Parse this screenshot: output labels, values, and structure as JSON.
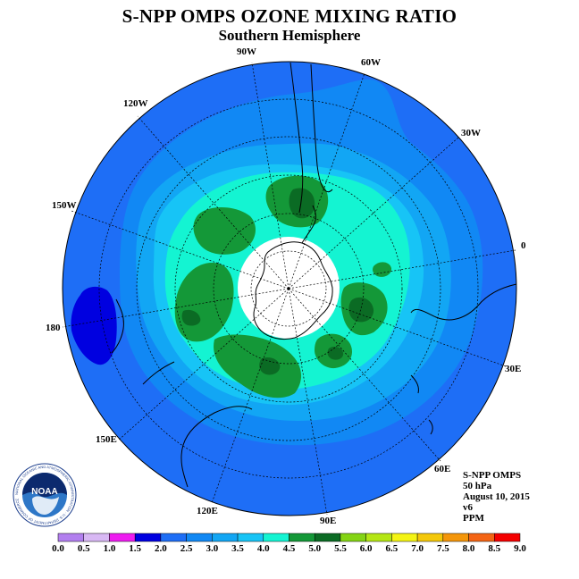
{
  "header": {
    "title": "S-NPP OMPS OZONE MIXING RATIO",
    "subtitle": "Southern Hemisphere"
  },
  "map": {
    "projection": "south polar stereographic",
    "longitude_labels": [
      "90W",
      "60W",
      "30W",
      "0",
      "30E",
      "60E",
      "90E",
      "120E",
      "150E",
      "180",
      "150W",
      "120W"
    ],
    "no_data_region": "polar night (white)"
  },
  "info": {
    "product": "S-NPP OMPS",
    "level": "50 hPa",
    "date": "August 10, 2015",
    "version": "v6",
    "unit": "PPM"
  },
  "colorbar": {
    "ticks": [
      "0.0",
      "0.5",
      "1.0",
      "1.5",
      "2.0",
      "2.5",
      "3.0",
      "3.5",
      "4.0",
      "4.5",
      "5.0",
      "5.5",
      "6.0",
      "6.5",
      "7.0",
      "7.5",
      "8.0",
      "8.5",
      "9.0"
    ],
    "colors": [
      "#b27fef",
      "#d8b8f4",
      "#ee1cf0",
      "#0000e0",
      "#1e6ef6",
      "#1188f4",
      "#12a6f4",
      "#17c4f6",
      "#14f4d2",
      "#149838",
      "#0b6b24",
      "#84d414",
      "#b4e614",
      "#f4f414",
      "#f4c80a",
      "#f4960a",
      "#f46414",
      "#f40000",
      "#8c5a3c"
    ]
  },
  "logo": {
    "text": "NOAA",
    "ring_text": "NATIONAL OCEANIC AND ATMOSPHERIC ADMINISTRATION · U.S. DEPARTMENT OF COMMERCE"
  }
}
